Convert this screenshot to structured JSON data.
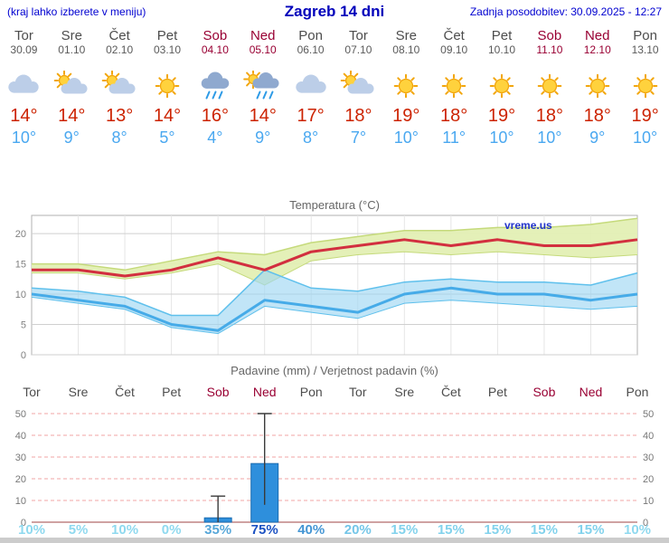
{
  "header": {
    "left_note": "(kraj lahko izberete v meniju)",
    "title": "Zagreb 14 dni",
    "updated": "Zadnja posodobitev: 30.09.2025 - 12:27"
  },
  "colors": {
    "header_blue": "#0000bb",
    "weekday_gray": "#4d4d4d",
    "weekend_red": "#990033",
    "tmax_red": "#cc2200",
    "tmin_blue": "#4aa8f0",
    "tmax_line": "#d22f3f",
    "tmin_line": "#46abe8",
    "tmax_band": "#e3efb4",
    "tmin_band": "#9fd7f2",
    "precip_bar": "#2e8fdc",
    "grid_dashed_red": "#f2a5a5"
  },
  "days": [
    {
      "name": "Tor",
      "date": "30.09",
      "weekend": false,
      "icon": "cloudy",
      "tmax": "14°",
      "tmin": "10°",
      "prob": "10%",
      "prob_color": "#8fd9ef"
    },
    {
      "name": "Sre",
      "date": "01.10",
      "weekend": false,
      "icon": "partly-cloudy",
      "tmax": "14°",
      "tmin": "9°",
      "prob": "5%",
      "prob_color": "#8fd9ef"
    },
    {
      "name": "Čet",
      "date": "02.10",
      "weekend": false,
      "icon": "partly-cloudy",
      "tmax": "13°",
      "tmin": "8°",
      "prob": "10%",
      "prob_color": "#8fd9ef"
    },
    {
      "name": "Pet",
      "date": "03.10",
      "weekend": false,
      "icon": "sunny",
      "tmax": "14°",
      "tmin": "5°",
      "prob": "0%",
      "prob_color": "#8fd9ef"
    },
    {
      "name": "Sob",
      "date": "04.10",
      "weekend": true,
      "icon": "rain",
      "tmax": "16°",
      "tmin": "4°",
      "prob": "35%",
      "prob_color": "#57a7d9"
    },
    {
      "name": "Ned",
      "date": "05.10",
      "weekend": true,
      "icon": "rain-sun",
      "tmax": "14°",
      "tmin": "9°",
      "prob": "75%",
      "prob_color": "#1d52c2"
    },
    {
      "name": "Pon",
      "date": "06.10",
      "weekend": false,
      "icon": "cloudy",
      "tmax": "17°",
      "tmin": "8°",
      "prob": "40%",
      "prob_color": "#4596d4"
    },
    {
      "name": "Tor",
      "date": "07.10",
      "weekend": false,
      "icon": "partly-cloudy",
      "tmax": "18°",
      "tmin": "7°",
      "prob": "20%",
      "prob_color": "#74c6e8"
    },
    {
      "name": "Sre",
      "date": "08.10",
      "weekend": false,
      "icon": "sunny",
      "tmax": "19°",
      "tmin": "10°",
      "prob": "15%",
      "prob_color": "#82d2ec"
    },
    {
      "name": "Čet",
      "date": "09.10",
      "weekend": false,
      "icon": "sunny",
      "tmax": "18°",
      "tmin": "11°",
      "prob": "15%",
      "prob_color": "#82d2ec"
    },
    {
      "name": "Pet",
      "date": "10.10",
      "weekend": false,
      "icon": "sunny",
      "tmax": "19°",
      "tmin": "10°",
      "prob": "15%",
      "prob_color": "#82d2ec"
    },
    {
      "name": "Sob",
      "date": "11.10",
      "weekend": true,
      "icon": "sunny",
      "tmax": "18°",
      "tmin": "10°",
      "prob": "15%",
      "prob_color": "#82d2ec"
    },
    {
      "name": "Ned",
      "date": "12.10",
      "weekend": true,
      "icon": "sunny",
      "tmax": "18°",
      "tmin": "9°",
      "prob": "15%",
      "prob_color": "#82d2ec"
    },
    {
      "name": "Pon",
      "date": "13.10",
      "weekend": false,
      "icon": "sunny",
      "tmax": "19°",
      "tmin": "10°",
      "prob": "10%",
      "prob_color": "#8fd9ef"
    }
  ],
  "chart_data": [
    {
      "type": "line",
      "title": "Temperatura (°C)",
      "watermark": "vreme.us",
      "categories": [
        "Tor",
        "Sre",
        "Čet",
        "Pet",
        "Sob",
        "Ned",
        "Pon",
        "Tor",
        "Sre",
        "Čet",
        "Pet",
        "Sob",
        "Ned",
        "Pon"
      ],
      "ylim": [
        0,
        23
      ],
      "yticks": [
        0,
        5,
        10,
        15,
        20
      ],
      "grid": true,
      "series": [
        {
          "name": "tmax",
          "values": [
            14,
            14,
            13,
            14,
            16,
            14,
            17,
            18,
            19,
            18,
            19,
            18,
            18,
            19
          ]
        },
        {
          "name": "tmax_band_upper",
          "values": [
            15,
            15,
            14,
            15.5,
            17,
            16.5,
            18.5,
            19.5,
            20.5,
            20.5,
            21,
            21,
            21.5,
            22.5
          ]
        },
        {
          "name": "tmax_band_lower",
          "values": [
            13.5,
            13.5,
            12.5,
            13.5,
            15,
            11.5,
            15.5,
            16.5,
            17,
            16.5,
            17,
            16.5,
            16,
            16.5
          ]
        },
        {
          "name": "tmin",
          "values": [
            10,
            9,
            8,
            5,
            4,
            9,
            8,
            7,
            10,
            11,
            10,
            10,
            9,
            10
          ]
        },
        {
          "name": "tmin_band_upper",
          "values": [
            11,
            10.5,
            9.5,
            6.5,
            6.5,
            14,
            11,
            10.5,
            12,
            12.5,
            12,
            12,
            11.5,
            13.5
          ]
        },
        {
          "name": "tmin_band_lower",
          "values": [
            9.5,
            8.5,
            7.5,
            4.5,
            3.5,
            8,
            7,
            6,
            8.5,
            9,
            8.5,
            8,
            7.5,
            8
          ]
        }
      ]
    },
    {
      "type": "bar",
      "title": "Padavine (mm) / Verjetnost padavin (%)",
      "categories": [
        "Tor",
        "Sre",
        "Čet",
        "Pet",
        "Sob",
        "Ned",
        "Pon",
        "Tor",
        "Sre",
        "Čet",
        "Pet",
        "Sob",
        "Ned",
        "Pon"
      ],
      "ylim": [
        0,
        53
      ],
      "yticks": [
        0,
        10,
        20,
        30,
        40,
        50
      ],
      "values": [
        0,
        0,
        0,
        0,
        2,
        27,
        0,
        0,
        0,
        0,
        0,
        0,
        0,
        0
      ],
      "whisker_low": [
        null,
        null,
        null,
        null,
        0,
        8,
        null,
        null,
        null,
        null,
        null,
        null,
        null,
        null
      ],
      "whisker_high": [
        null,
        null,
        null,
        null,
        12,
        50,
        null,
        null,
        null,
        null,
        null,
        null,
        null,
        null
      ],
      "probabilities": [
        "10%",
        "5%",
        "10%",
        "0%",
        "35%",
        "75%",
        "40%",
        "20%",
        "15%",
        "15%",
        "15%",
        "15%",
        "15%",
        "10%"
      ]
    }
  ]
}
